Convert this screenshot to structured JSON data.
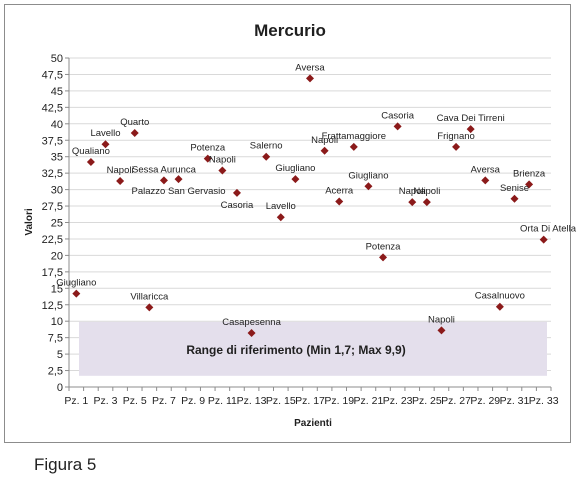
{
  "caption": "Figura 5",
  "colors": {
    "marker": "#8b1a1a",
    "range_fill": "#e4dfec",
    "grid": "#d9d9d9",
    "axis": "#8c8c8c",
    "text": "#1f1f1f"
  },
  "chart_data": {
    "type": "scatter",
    "title": "Mercurio",
    "xlabel": "Pazienti",
    "ylabel": "Valori",
    "ylim": [
      0,
      50
    ],
    "ytick_step": 2.5,
    "yticks": [
      "0",
      "2,5",
      "5",
      "7,5",
      "10",
      "12,5",
      "15",
      "17,5",
      "20",
      "22,5",
      "25",
      "27,5",
      "30",
      "32,5",
      "35",
      "37,5",
      "40",
      "42,5",
      "45",
      "47,5",
      "50"
    ],
    "x_categories": [
      "Pz. 1",
      "Pz. 2",
      "Pz. 3",
      "Pz. 4",
      "Pz. 5",
      "Pz. 6",
      "Pz. 7",
      "Pz. 8",
      "Pz. 9",
      "Pz. 10",
      "Pz. 11",
      "Pz. 12",
      "Pz. 13",
      "Pz. 14",
      "Pz. 15",
      "Pz. 16",
      "Pz. 17",
      "Pz. 18",
      "Pz. 19",
      "Pz. 20",
      "Pz. 21",
      "Pz. 22",
      "Pz. 23",
      "Pz. 24",
      "Pz. 25",
      "Pz. 26",
      "Pz. 27",
      "Pz. 28",
      "Pz. 29",
      "Pz. 30",
      "Pz. 31",
      "Pz. 32",
      "Pz. 33"
    ],
    "x_tick_labels": [
      "Pz. 1",
      "Pz. 3",
      "Pz. 5",
      "Pz. 7",
      "Pz. 9",
      "Pz. 11",
      "Pz. 13",
      "Pz. 15",
      "Pz. 17",
      "Pz. 19",
      "Pz. 21",
      "Pz. 23",
      "Pz. 25",
      "Pz. 27",
      "Pz. 29",
      "Pz. 31",
      "Pz. 33"
    ],
    "grid": "horizontal",
    "legend": "none",
    "reference_range": {
      "label": "Range di riferimento  (Min 1,7; Max 9,9)",
      "min": 1.7,
      "max": 9.9
    },
    "points": [
      {
        "x": 1,
        "y": 14.2,
        "label": "Giugliano",
        "label_pos": "above"
      },
      {
        "x": 2,
        "y": 34.2,
        "label": "Qualiano",
        "label_pos": "above"
      },
      {
        "x": 3,
        "y": 36.9,
        "label": "Lavello",
        "label_pos": "above"
      },
      {
        "x": 4,
        "y": 31.3,
        "label": "Napoli",
        "label_pos": "above"
      },
      {
        "x": 5,
        "y": 38.6,
        "label": "Quarto",
        "label_pos": "above"
      },
      {
        "x": 6,
        "y": 12.1,
        "label": "Villaricca",
        "label_pos": "above"
      },
      {
        "x": 7,
        "y": 31.4,
        "label": "Sessa Aurunca",
        "label_pos": "above"
      },
      {
        "x": 8,
        "y": 31.6,
        "label": "Palazzo San Gervasio",
        "label_pos": "below"
      },
      {
        "x": 10,
        "y": 34.7,
        "label": "Potenza",
        "label_pos": "above"
      },
      {
        "x": 11,
        "y": 32.9,
        "label": "Napoli",
        "label_pos": "above"
      },
      {
        "x": 12,
        "y": 29.5,
        "label": "Casoria",
        "label_pos": "below"
      },
      {
        "x": 13,
        "y": 8.2,
        "label": "Casapesenna",
        "label_pos": "above"
      },
      {
        "x": 14,
        "y": 35.0,
        "label": "Salerno",
        "label_pos": "above"
      },
      {
        "x": 15,
        "y": 25.8,
        "label": "Lavello",
        "label_pos": "above"
      },
      {
        "x": 16,
        "y": 31.6,
        "label": "Giugliano",
        "label_pos": "above"
      },
      {
        "x": 17,
        "y": 46.9,
        "label": "Aversa",
        "label_pos": "above"
      },
      {
        "x": 18,
        "y": 35.9,
        "label": "Napoli",
        "label_pos": "above"
      },
      {
        "x": 19,
        "y": 28.2,
        "label": "Acerra",
        "label_pos": "above"
      },
      {
        "x": 20,
        "y": 36.5,
        "label": "Frattamaggiore",
        "label_pos": "above"
      },
      {
        "x": 21,
        "y": 30.5,
        "label": "Giugliano",
        "label_pos": "above"
      },
      {
        "x": 22,
        "y": 19.7,
        "label": "Potenza",
        "label_pos": "above"
      },
      {
        "x": 23,
        "y": 39.6,
        "label": "Casoria",
        "label_pos": "above"
      },
      {
        "x": 24,
        "y": 28.1,
        "label": "Napoli",
        "label_pos": "above"
      },
      {
        "x": 25,
        "y": 28.1,
        "label": "Napoli",
        "label_pos": "above"
      },
      {
        "x": 26,
        "y": 8.6,
        "label": "Napoli",
        "label_pos": "above"
      },
      {
        "x": 27,
        "y": 36.5,
        "label": "Frignano",
        "label_pos": "above"
      },
      {
        "x": 28,
        "y": 39.2,
        "label": "Cava Dei Tirreni",
        "label_pos": "above"
      },
      {
        "x": 29,
        "y": 31.4,
        "label": "Aversa",
        "label_pos": "above"
      },
      {
        "x": 30,
        "y": 12.2,
        "label": "Casalnuovo",
        "label_pos": "above"
      },
      {
        "x": 31,
        "y": 28.6,
        "label": "Senise",
        "label_pos": "above"
      },
      {
        "x": 32,
        "y": 30.8,
        "label": "Brienza",
        "label_pos": "above"
      },
      {
        "x": 33,
        "y": 22.4,
        "label": "Orta Di Atella",
        "label_pos": "above"
      }
    ]
  }
}
